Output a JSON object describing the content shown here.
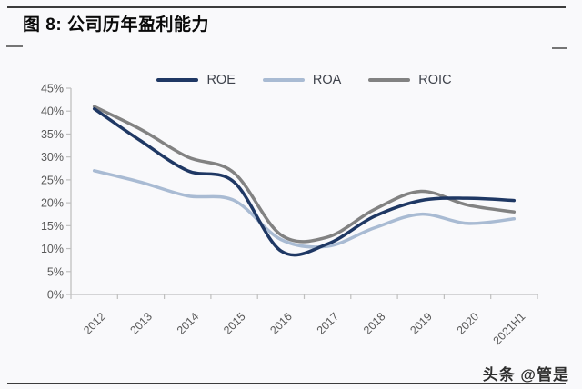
{
  "header": {
    "title": "图 8: 公司历年盈利能力"
  },
  "footer": {
    "watermark": "头条 @管是"
  },
  "chart_data": {
    "type": "line",
    "title": "公司历年盈利能力",
    "categories": [
      "2012",
      "2013",
      "2014",
      "2015",
      "2016",
      "2017",
      "2018",
      "2019",
      "2020",
      "2021H1"
    ],
    "series": [
      {
        "name": "ROE",
        "color": "#1f3864",
        "values": [
          40.5,
          33.5,
          27.0,
          24.5,
          9.5,
          11.0,
          17.0,
          20.5,
          21.0,
          20.5
        ]
      },
      {
        "name": "ROA",
        "color": "#a9bbd3",
        "values": [
          27.0,
          24.5,
          21.5,
          20.5,
          12.0,
          10.5,
          14.5,
          17.5,
          15.5,
          16.5
        ]
      },
      {
        "name": "ROIC",
        "color": "#828282",
        "values": [
          41.0,
          36.0,
          30.0,
          26.5,
          13.0,
          12.5,
          18.5,
          22.5,
          19.5,
          18.0
        ]
      }
    ],
    "unit": "%",
    "ylim": [
      0,
      45
    ],
    "ytick_step": 5,
    "ytick_labels": [
      "0%",
      "5%",
      "10%",
      "15%",
      "20%",
      "25%",
      "30%",
      "35%",
      "40%",
      "45%"
    ],
    "xlabel": "",
    "ylabel": "",
    "grid": false,
    "smooth": true,
    "legend_position": "top",
    "axis_color": "#bfbfbf",
    "tick_label_color": "#595959"
  }
}
